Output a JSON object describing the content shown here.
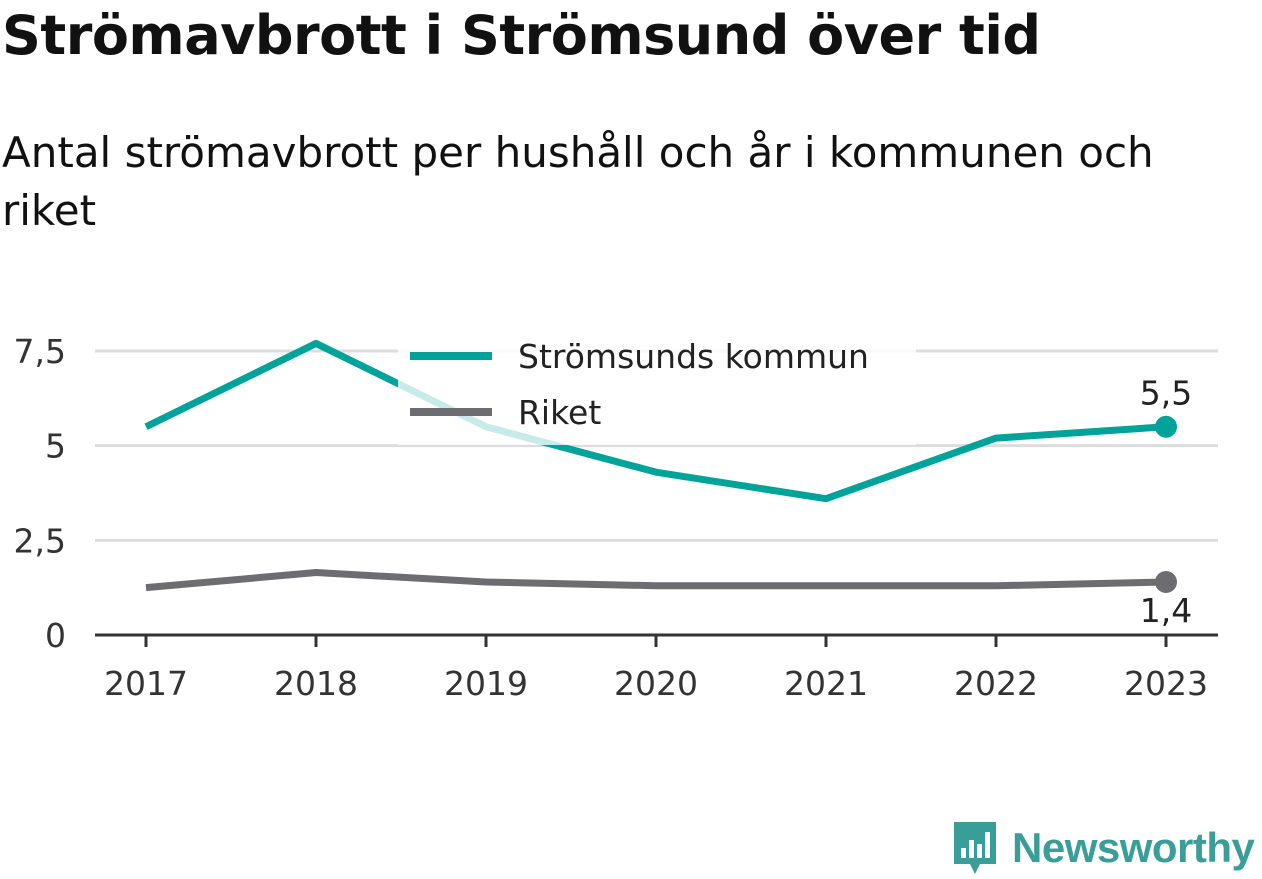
{
  "title": "Strömavbrott i Strömsund över tid",
  "subtitle": "Antal strömavbrott per hushåll och år i kommunen och riket",
  "brand": {
    "name": "Newsworthy",
    "icon": "bar-chart-bubble-icon",
    "color": "#3a9e98"
  },
  "chart_data": {
    "type": "line",
    "x": [
      "2017",
      "2018",
      "2019",
      "2020",
      "2021",
      "2022",
      "2023"
    ],
    "series": [
      {
        "name": "Strömsunds kommun",
        "color": "#00a39a",
        "values": [
          5.5,
          7.7,
          5.5,
          4.3,
          3.6,
          5.2,
          5.5
        ],
        "end_label": "5,5"
      },
      {
        "name": "Riket",
        "color": "#6d6c70",
        "values": [
          1.25,
          1.65,
          1.4,
          1.3,
          1.3,
          1.3,
          1.4
        ],
        "end_label": "1,4"
      }
    ],
    "y_ticks": [
      {
        "value": 0,
        "label": "0"
      },
      {
        "value": 2.5,
        "label": "2,5"
      },
      {
        "value": 5,
        "label": "5"
      },
      {
        "value": 7.5,
        "label": "7,5"
      }
    ],
    "ylim": [
      0,
      7.5
    ],
    "grid": true,
    "legend": "top-center"
  }
}
